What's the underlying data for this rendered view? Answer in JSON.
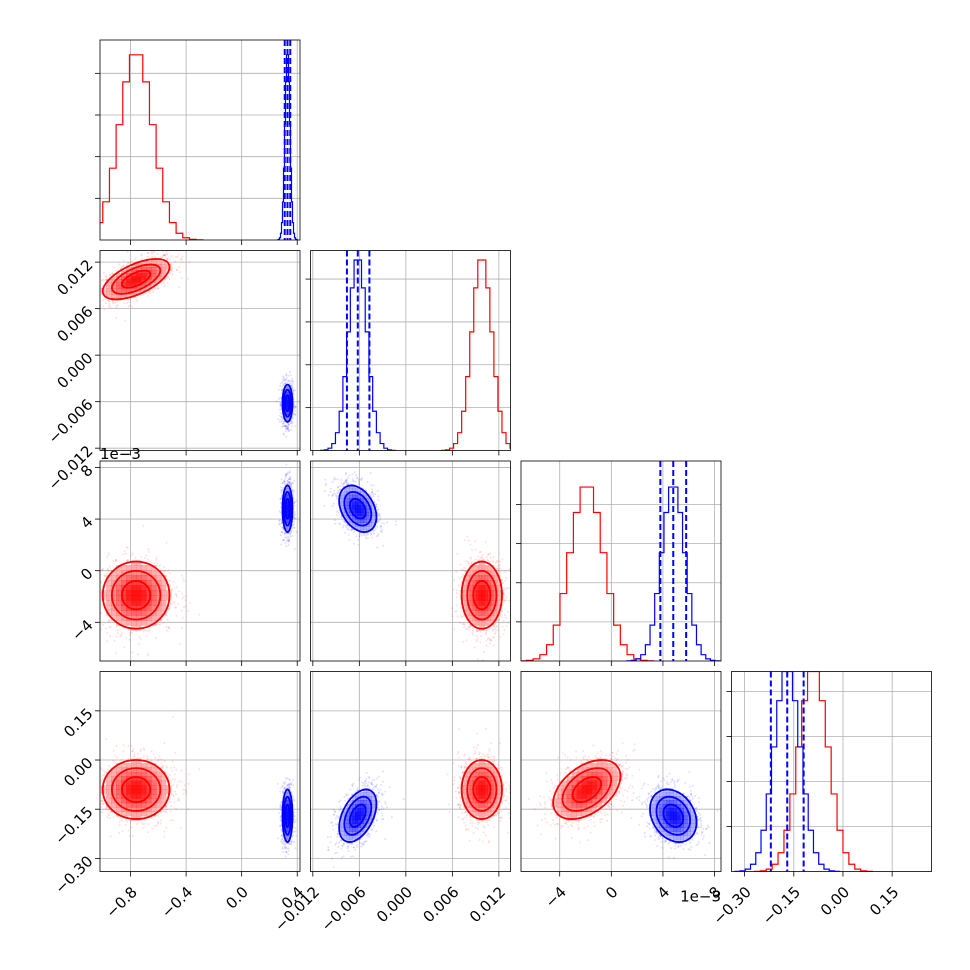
{
  "chart_data": {
    "type": "corner",
    "title": "",
    "grid": true,
    "colors": {
      "red": "#ff0000",
      "blue": "#0000ff"
    },
    "parameters": [
      {
        "index": 0,
        "range": [
          -1.02,
          0.42
        ],
        "ticks": [
          -0.8,
          -0.4,
          0.0,
          0.4
        ],
        "tick_labels": [
          "−0.8",
          "−0.4",
          "0.0",
          "0.4"
        ],
        "offset": ""
      },
      {
        "index": 1,
        "range": [
          -0.0123,
          0.0135
        ],
        "ticks": [
          -0.012,
          -0.006,
          0.0,
          0.006,
          0.012
        ],
        "tick_labels": [
          "−0.012",
          "−0.006",
          "0.000",
          "0.006",
          "0.012"
        ],
        "offset": ""
      },
      {
        "index": 2,
        "range": [
          -7.0,
          8.5
        ],
        "ticks": [
          -4,
          0,
          4,
          8
        ],
        "tick_labels": [
          "−4",
          "0",
          "4",
          "8"
        ],
        "offset": "1e−3"
      },
      {
        "index": 3,
        "range": [
          -0.34,
          0.27
        ],
        "ticks": [
          -0.3,
          -0.15,
          0.0,
          0.15
        ],
        "tick_labels": [
          "−0.30",
          "−0.15",
          "0.00",
          "0.15"
        ],
        "offset": ""
      }
    ],
    "diag_y_max": [
      1.08,
      1.05,
      1.15,
      1.0
    ],
    "series": [
      {
        "name": "",
        "color": "#ff0000",
        "mean": [
          -0.76,
          0.0098,
          -1.9,
          -0.09
        ],
        "std": [
          0.12,
          0.0013,
          1.3,
          0.045
        ],
        "corr": [
          [
            1,
            0.6,
            0,
            0
          ],
          [
            0.6,
            1,
            0,
            0
          ],
          [
            0,
            0,
            1,
            0.45
          ],
          [
            0,
            0,
            0.45,
            1
          ]
        ],
        "quantiles": null
      },
      {
        "name": "",
        "color": "#0000ff",
        "mean": [
          0.33,
          -0.0062,
          4.8,
          -0.17
        ],
        "std": [
          0.018,
          0.0012,
          0.9,
          0.04
        ],
        "corr": [
          [
            1,
            0,
            0,
            0
          ],
          [
            0,
            1,
            -0.35,
            0.45
          ],
          [
            0,
            -0.35,
            1,
            -0.25
          ],
          [
            0,
            0.45,
            -0.25,
            1
          ]
        ],
        "quantiles": [
          [
            0.31,
            0.33,
            0.35
          ],
          [
            -0.0076,
            -0.0062,
            -0.0047
          ],
          [
            3.8,
            4.8,
            5.8
          ],
          [
            -0.22,
            -0.17,
            -0.12
          ]
        ]
      }
    ]
  }
}
